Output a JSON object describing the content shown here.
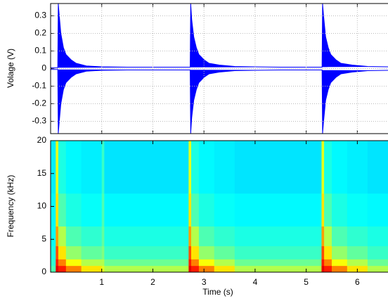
{
  "chart_data": [
    {
      "type": "line",
      "ylabel": "Volage (V)",
      "x": [
        0,
        0.14,
        0.15,
        0.17,
        0.2,
        0.25,
        0.3,
        0.4,
        0.5,
        0.7,
        1.0,
        1.5,
        2.0,
        2.5,
        2.73,
        2.74,
        2.76,
        2.8,
        2.85,
        2.9,
        3.0,
        3.1,
        3.3,
        3.6,
        4.0,
        4.5,
        5.0,
        5.31,
        5.32,
        5.34,
        5.38,
        5.43,
        5.48,
        5.58,
        5.68,
        5.9,
        6.2,
        6.6
      ],
      "series": [
        {
          "color": "#0000ff",
          "values": [
            0.005,
            0.005,
            0.37,
            0.3,
            0.2,
            0.12,
            0.08,
            0.05,
            0.03,
            0.015,
            0.01,
            0.008,
            0.008,
            0.008,
            0.008,
            0.37,
            0.28,
            0.18,
            0.12,
            0.08,
            0.05,
            0.03,
            0.02,
            0.012,
            0.01,
            0.008,
            0.008,
            0.008,
            0.37,
            0.3,
            0.18,
            0.12,
            0.08,
            0.05,
            0.03,
            0.02,
            0.012,
            0.01
          ]
        },
        {
          "color": "#0000ff",
          "values": [
            -0.005,
            -0.005,
            -0.37,
            -0.3,
            -0.2,
            -0.12,
            -0.08,
            -0.05,
            -0.03,
            -0.015,
            -0.01,
            -0.008,
            -0.008,
            -0.008,
            -0.008,
            -0.37,
            -0.28,
            -0.18,
            -0.12,
            -0.08,
            -0.05,
            -0.03,
            -0.02,
            -0.012,
            -0.01,
            -0.008,
            -0.008,
            -0.008,
            -0.37,
            -0.3,
            -0.18,
            -0.12,
            -0.08,
            -0.05,
            -0.03,
            -0.02,
            -0.012,
            -0.01
          ]
        }
      ],
      "xlim": [
        0,
        6.6
      ],
      "xticks": [
        1,
        2,
        3,
        4,
        5,
        6
      ],
      "show_xtick_labels": false,
      "ylim": [
        -0.37,
        0.37
      ],
      "yticks": [
        0.3,
        0.2,
        0.1,
        0,
        -0.1,
        -0.2,
        -0.3
      ],
      "grid": true
    },
    {
      "type": "heatmap",
      "xlabel": "Time (s)",
      "ylabel": "Frequency (kHz)",
      "colormap": "jet",
      "xbins": [
        0,
        0.1,
        0.15,
        0.3,
        0.6,
        1.0,
        1.05,
        2.7,
        2.75,
        2.9,
        3.2,
        3.6,
        5.3,
        5.35,
        5.5,
        5.8,
        6.2,
        6.6
      ],
      "ybins": [
        0,
        1,
        2,
        4,
        7,
        12,
        20
      ],
      "z": [
        [
          0.45,
          0.42,
          0.4,
          0.38,
          0.37,
          0.36
        ],
        [
          0.9,
          0.85,
          0.8,
          0.72,
          0.65,
          0.6
        ],
        [
          0.85,
          0.75,
          0.65,
          0.55,
          0.45,
          0.4
        ],
        [
          0.75,
          0.62,
          0.52,
          0.45,
          0.4,
          0.37
        ],
        [
          0.65,
          0.55,
          0.47,
          0.42,
          0.38,
          0.36
        ],
        [
          0.6,
          0.55,
          0.5,
          0.47,
          0.45,
          0.43
        ],
        [
          0.55,
          0.48,
          0.43,
          0.4,
          0.37,
          0.35
        ],
        [
          0.9,
          0.85,
          0.8,
          0.72,
          0.65,
          0.6
        ],
        [
          0.85,
          0.75,
          0.65,
          0.55,
          0.45,
          0.4
        ],
        [
          0.75,
          0.62,
          0.52,
          0.45,
          0.4,
          0.37
        ],
        [
          0.65,
          0.55,
          0.47,
          0.42,
          0.38,
          0.36
        ],
        [
          0.55,
          0.48,
          0.43,
          0.4,
          0.37,
          0.35
        ],
        [
          0.9,
          0.85,
          0.8,
          0.72,
          0.65,
          0.6
        ],
        [
          0.85,
          0.75,
          0.65,
          0.55,
          0.45,
          0.4
        ],
        [
          0.75,
          0.62,
          0.52,
          0.45,
          0.4,
          0.37
        ],
        [
          0.65,
          0.55,
          0.47,
          0.42,
          0.38,
          0.36
        ],
        [
          0.55,
          0.48,
          0.43,
          0.4,
          0.37,
          0.35
        ]
      ],
      "xlim": [
        0,
        6.6
      ],
      "xticks": [
        1,
        2,
        3,
        4,
        5,
        6
      ],
      "show_xtick_labels": true,
      "ylim": [
        0,
        20
      ],
      "yticks": [
        0,
        5,
        10,
        15,
        20
      ],
      "grid": false
    }
  ]
}
